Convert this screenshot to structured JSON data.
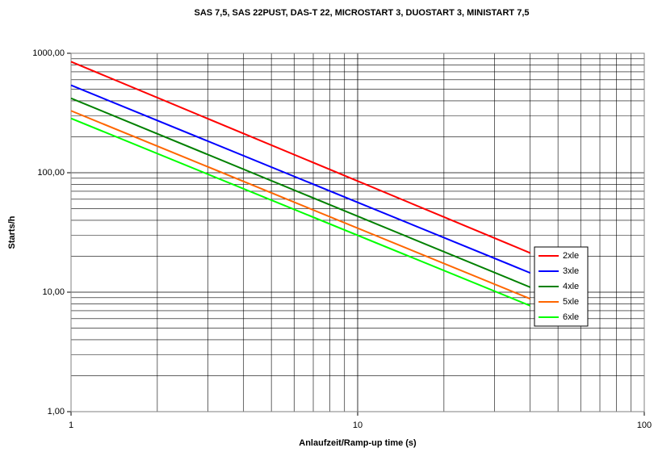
{
  "chart_data": {
    "type": "line",
    "title": "SAS 7,5, SAS 22PUST, DAS-T 22, MICROSTART 3, DUOSTART 3, MINISTART 7,5",
    "xlabel": "Anlaufzeit/Ramp-up time (s)",
    "ylabel": "Starts/h",
    "xscale": "log",
    "yscale": "log",
    "grid": true,
    "legend": "right",
    "xlim": [
      1,
      100
    ],
    "ylim": [
      1,
      1000
    ],
    "xticks": [
      1,
      10,
      100
    ],
    "yticks": [
      {
        "value": 1,
        "label": "1,00"
      },
      {
        "value": 10,
        "label": "10,00"
      },
      {
        "value": 100,
        "label": "100,00"
      },
      {
        "value": 1000,
        "label": "1000,00"
      }
    ],
    "xminorticks": [
      2,
      3,
      4,
      5,
      6,
      7,
      8,
      9,
      20,
      30,
      40,
      50,
      60,
      70,
      80,
      90
    ],
    "yminorticks": [
      2,
      3,
      4,
      5,
      6,
      7,
      8,
      9,
      20,
      30,
      40,
      50,
      60,
      70,
      80,
      90,
      200,
      300,
      400,
      500,
      600,
      700,
      800,
      900
    ],
    "x": [
      1,
      40
    ],
    "series": [
      {
        "name": "2xle",
        "color": "#ff0000",
        "values": [
          850,
          21.3
        ]
      },
      {
        "name": "3xle",
        "color": "#0000ff",
        "values": [
          540,
          14.5
        ]
      },
      {
        "name": "4xle",
        "color": "#008000",
        "values": [
          420,
          11
        ]
      },
      {
        "name": "5xle",
        "color": "#ff6600",
        "values": [
          330,
          8.8
        ]
      },
      {
        "name": "6xle",
        "color": "#00ff00",
        "values": [
          285,
          7.7
        ]
      }
    ]
  }
}
